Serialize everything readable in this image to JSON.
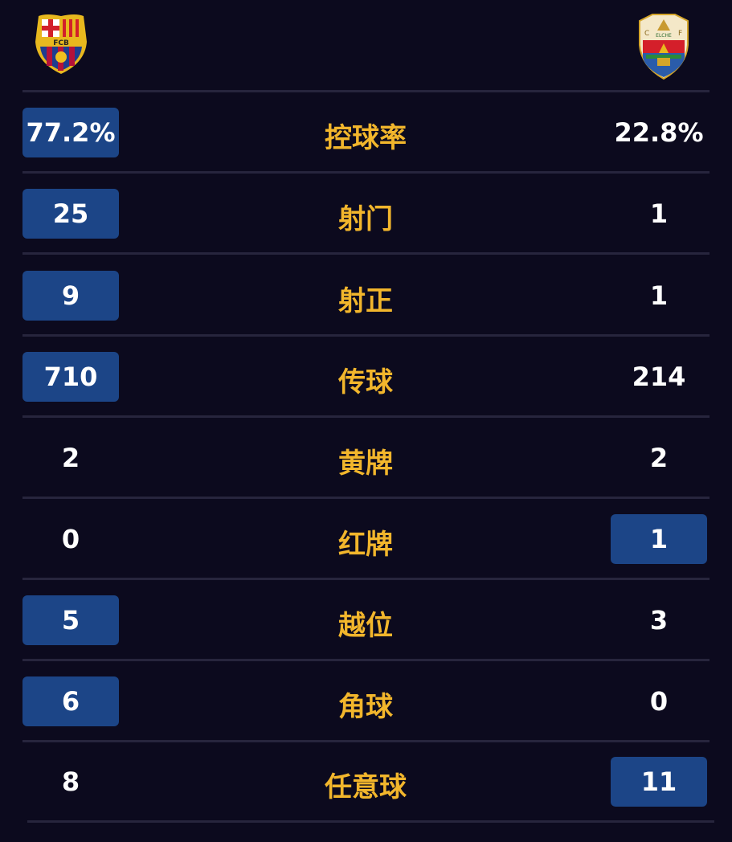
{
  "teams": {
    "home": {
      "logo_text": "FCB",
      "logo_icon": "fc-barcelona-crest"
    },
    "away": {
      "logo_text": "ELCHE C F",
      "logo_icon": "elche-cf-crest"
    }
  },
  "colors": {
    "background": "#0c0a1e",
    "highlight": "#1c4587",
    "label": "#f2b62c",
    "value": "#ffffff"
  },
  "stats": [
    {
      "label": "控球率",
      "home": "77.2%",
      "away": "22.8%",
      "leader": "home"
    },
    {
      "label": "射门",
      "home": "25",
      "away": "1",
      "leader": "home"
    },
    {
      "label": "射正",
      "home": "9",
      "away": "1",
      "leader": "home"
    },
    {
      "label": "传球",
      "home": "710",
      "away": "214",
      "leader": "home"
    },
    {
      "label": "黄牌",
      "home": "2",
      "away": "2",
      "leader": "none"
    },
    {
      "label": "红牌",
      "home": "0",
      "away": "1",
      "leader": "away"
    },
    {
      "label": "越位",
      "home": "5",
      "away": "3",
      "leader": "home"
    },
    {
      "label": "角球",
      "home": "6",
      "away": "0",
      "leader": "home"
    },
    {
      "label": "任意球",
      "home": "8",
      "away": "11",
      "leader": "away"
    }
  ]
}
